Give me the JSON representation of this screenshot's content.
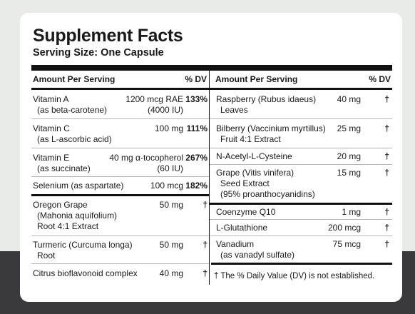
{
  "title": "Supplement Facts",
  "serving_size": "Serving Size: One Capsule",
  "left_header": {
    "amount": "Amount Per Serving",
    "dv": "% DV"
  },
  "right_header": {
    "amount": "Amount Per Serving",
    "dv": "% DV"
  },
  "left_rows": [
    {
      "name": "Vitamin A",
      "sub": "(as beta-carotene)",
      "amount": "1200 mcg RAE",
      "amount2": "(4000 IU)",
      "dv": "133%"
    },
    {
      "name": "Vitamin C",
      "sub": "(as L-ascorbic acid)",
      "amount": "100 mg",
      "dv": "111%"
    },
    {
      "name": "Vitamin E",
      "sub": "(as succinate)",
      "amount": "40 mg α-tocopherol",
      "amount2": "(60 IU)",
      "dv": "267%"
    },
    {
      "name": "Selenium (as aspartate)",
      "amount": "100 mcg",
      "dv": "182%"
    },
    {
      "name": "Oregon Grape",
      "sub": "(Mahonia aquifolium)",
      "sub2": "Root 4:1 Extract",
      "amount": "50 mg",
      "dv": "†"
    },
    {
      "name": "Turmeric (Curcuma longa)",
      "sub": "Root",
      "amount": "50 mg",
      "dv": "†"
    },
    {
      "name": "Citrus bioflavonoid complex",
      "amount": "40 mg",
      "dv": "†"
    }
  ],
  "right_rows": [
    {
      "name": "Raspberry (Rubus idaeus)",
      "sub": "Leaves",
      "amount": "40 mg",
      "dv": "†"
    },
    {
      "name": "Bilberry (Vaccinium myrtillus)",
      "sub": "Fruit 4:1 Extract",
      "amount": "25 mg",
      "dv": "†"
    },
    {
      "name": "N-Acetyl-L-Cysteine",
      "amount": "20 mg",
      "dv": "†"
    },
    {
      "name": "Grape (Vitis vinifera)",
      "sub": "Seed Extract",
      "sub2": "(95% proanthocyanidins)",
      "amount": "15 mg",
      "dv": "†"
    },
    {
      "name": "Coenzyme Q10",
      "amount": "1 mg",
      "dv": "†"
    },
    {
      "name": "L-Glutathione",
      "amount": "200 mcg",
      "dv": "†"
    },
    {
      "name": "Vanadium",
      "sub": "(as vanadyl sulfate)",
      "amount": "75 mcg",
      "dv": "†"
    }
  ],
  "footnote": "† The % Daily Value (DV) is not established."
}
